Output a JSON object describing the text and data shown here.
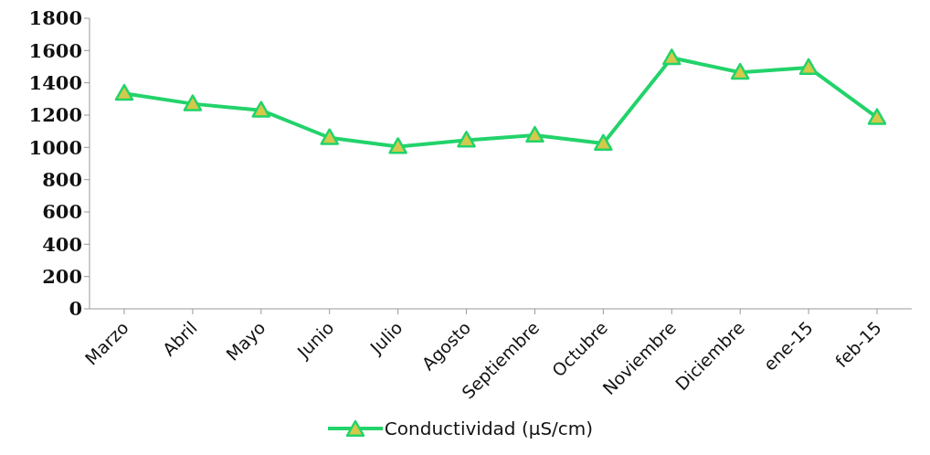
{
  "chart_data": {
    "type": "line",
    "categories": [
      "Marzo",
      "Abril",
      "Mayo",
      "Junio",
      "Julio",
      "Agosto",
      "Septiembre",
      "Octubre",
      "Noviembre",
      "Diciembre",
      "ene-15",
      "feb-15"
    ],
    "series": [
      {
        "name": "Conductividad (µS/cm)",
        "color": "#22d36a",
        "values": [
          1335,
          1270,
          1230,
          1060,
          1005,
          1045,
          1075,
          1025,
          1555,
          1465,
          1495,
          1185
        ]
      }
    ],
    "ylim": [
      0,
      1800
    ],
    "yticks": [
      0,
      200,
      400,
      600,
      800,
      1000,
      1200,
      1400,
      1600,
      1800
    ],
    "grid": false,
    "legend": "bottom",
    "marker": "triangle",
    "line_style": "solid"
  }
}
